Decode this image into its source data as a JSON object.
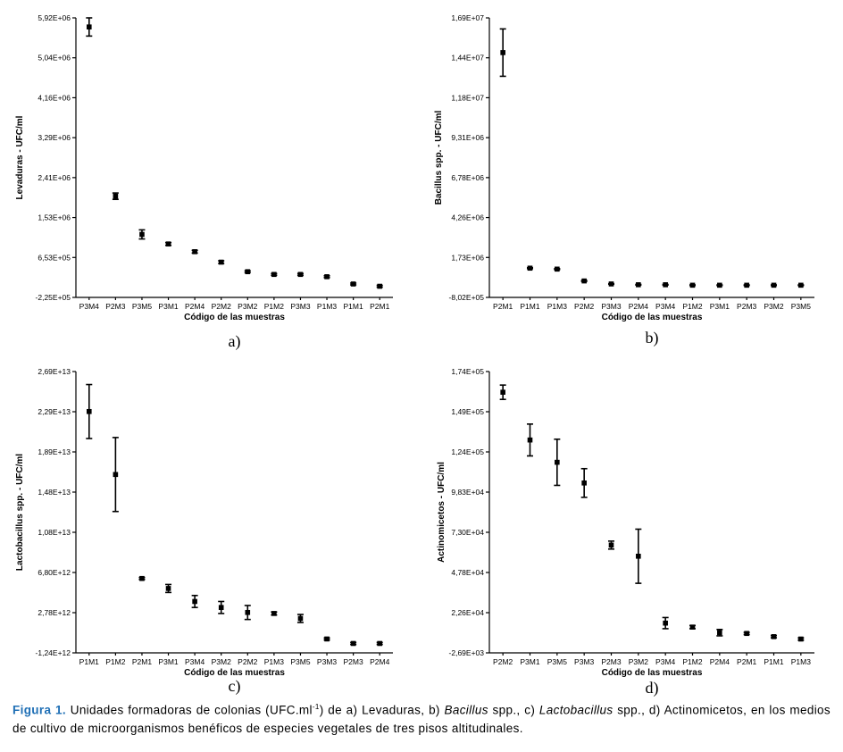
{
  "caption": {
    "lead": "Figura 1.",
    "part1": " Unidades formadoras de colonias (UFC.ml",
    "sup": "-1",
    "part2": ") de a) Levaduras, b) ",
    "italic1": "Bacillus",
    "part3": " spp., c) ",
    "italic2": "Lactobacillus",
    "part4": " spp., d) Actinomicetos, en los medios de cultivo de microorganismos benéficos de especies vegetales de tres pisos altitudinales."
  },
  "chart_data": [
    {
      "type": "scatter",
      "panel_label": "a)",
      "xlabel": "Código de las muestras",
      "ylabel": "Levaduras - UFC/ml",
      "yticks": [
        "-2,25E+05",
        "6,53E+05",
        "1,53E+06",
        "2,41E+06",
        "3,29E+06",
        "4,16E+06",
        "5,04E+06",
        "5,92E+06"
      ],
      "ylim": [
        -225000,
        5920000
      ],
      "categories": [
        "P3M4",
        "P2M3",
        "P3M5",
        "P3M1",
        "P2M4",
        "P2M2",
        "P3M2",
        "P1M2",
        "P3M3",
        "P1M3",
        "P1M1",
        "P2M1"
      ],
      "series": [
        {
          "values": [
            5720000,
            2000000,
            1160000,
            950000,
            780000,
            550000,
            340000,
            280000,
            280000,
            230000,
            70000,
            20000
          ],
          "errors": [
            200000,
            70000,
            100000,
            30000,
            30000,
            30000,
            20000,
            20000,
            20000,
            20000,
            20000,
            20000
          ]
        }
      ],
      "grid": false
    },
    {
      "type": "scatter",
      "panel_label": "b)",
      "xlabel": "Código de las muestras",
      "ylabel": "Bacillus spp. - UFC/ml",
      "yticks": [
        "-8,02E+05",
        "1,73E+06",
        "4,26E+06",
        "6,78E+06",
        "9,31E+06",
        "1,18E+07",
        "1,44E+07",
        "1,69E+07"
      ],
      "ylim": [
        -802000,
        16900000
      ],
      "categories": [
        "P2M1",
        "P1M1",
        "P1M3",
        "P2M2",
        "P3M3",
        "P2M4",
        "P3M4",
        "P1M2",
        "P3M1",
        "P2M3",
        "P3M2",
        "P3M5"
      ],
      "series": [
        {
          "values": [
            14700000,
            1050000,
            990000,
            240000,
            50000,
            0,
            0,
            -30000,
            -30000,
            -30000,
            -30000,
            -30000
          ],
          "errors": [
            1500000,
            30000,
            30000,
            30000,
            20000,
            20000,
            20000,
            20000,
            20000,
            20000,
            20000,
            20000
          ]
        }
      ],
      "grid": false
    },
    {
      "type": "scatter",
      "panel_label": "c)",
      "xlabel": "Código de las muestras",
      "ylabel": "Lactobacillus spp. - UFC/ml",
      "yticks": [
        "-1,24E+12",
        "2,78E+12",
        "6,80E+12",
        "1,08E+13",
        "1,48E+13",
        "1,89E+13",
        "2,29E+13",
        "2,69E+13"
      ],
      "ylim": [
        -1240000000000,
        26900000000000
      ],
      "categories": [
        "P1M1",
        "P1M2",
        "P2M1",
        "P3M1",
        "P3M4",
        "P3M2",
        "P2M2",
        "P1M3",
        "P3M5",
        "P3M3",
        "P2M3",
        "P2M4"
      ],
      "series": [
        {
          "values": [
            22900000000000,
            16600000000000,
            6200000000000,
            5200000000000,
            3900000000000,
            3300000000000,
            2800000000000,
            2700000000000,
            2200000000000,
            150000000000,
            -300000000000,
            -300000000000
          ],
          "errors": [
            2700000000000,
            3700000000000,
            100000000000,
            400000000000,
            600000000000,
            600000000000,
            700000000000,
            150000000000,
            400000000000,
            100000000000,
            100000000000,
            100000000000
          ]
        }
      ],
      "grid": false
    },
    {
      "type": "scatter",
      "panel_label": "d)",
      "xlabel": "Código de las muestras",
      "ylabel": "Actinomicetos - UFC/ml",
      "yticks": [
        "-2,69E+03",
        "2,26E+04",
        "4,78E+04",
        "7,30E+04",
        "9,83E+04",
        "1,24E+05",
        "1,49E+05",
        "1,74E+05"
      ],
      "ylim": [
        -2690,
        174000
      ],
      "categories": [
        "P2M2",
        "P3M1",
        "P3M5",
        "P3M3",
        "P2M3",
        "P3M2",
        "P3M4",
        "P1M2",
        "P2M4",
        "P2M1",
        "P1M1",
        "P1M3"
      ],
      "series": [
        {
          "values": [
            161000,
            131000,
            117000,
            104000,
            65000,
            58000,
            16000,
            13500,
            10000,
            9500,
            7500,
            6000
          ],
          "errors": [
            4500,
            10000,
            14500,
            9000,
            2500,
            17000,
            3500,
            1000,
            2000,
            700,
            700,
            700
          ]
        }
      ],
      "grid": false
    }
  ]
}
